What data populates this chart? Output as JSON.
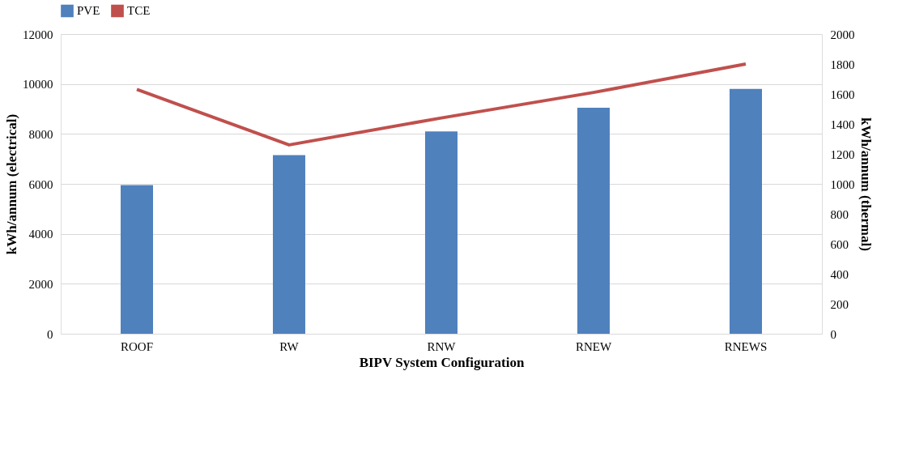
{
  "chart_data": {
    "type": "bar",
    "categories": [
      "ROOF",
      "RW",
      "RNW",
      "RNEW",
      "RNEWS"
    ],
    "xlabel": "BIPV System Configuration",
    "ylabel": "kWh/annum (electrical)",
    "y2label": "kWh/annum (thermal)",
    "series": [
      {
        "name": "PVE",
        "color": "#4f81bd",
        "values": [
          5950,
          7150,
          8100,
          9050,
          9800
        ]
      },
      {
        "name": "TCE",
        "type": "line",
        "axis": "y2",
        "color": "#c0504d",
        "values": [
          1630,
          1260,
          1440,
          1610,
          1800
        ]
      }
    ],
    "ylim": [
      0,
      12000
    ],
    "yticks": [
      0,
      2000,
      4000,
      6000,
      8000,
      10000,
      12000
    ],
    "y2lim": [
      0,
      2000
    ],
    "y2ticks": [
      0,
      200,
      400,
      600,
      800,
      1000,
      1200,
      1400,
      1600,
      1800,
      2000
    ],
    "grid": "y",
    "legend": "top",
    "marker": "none",
    "line_style": "solid"
  }
}
